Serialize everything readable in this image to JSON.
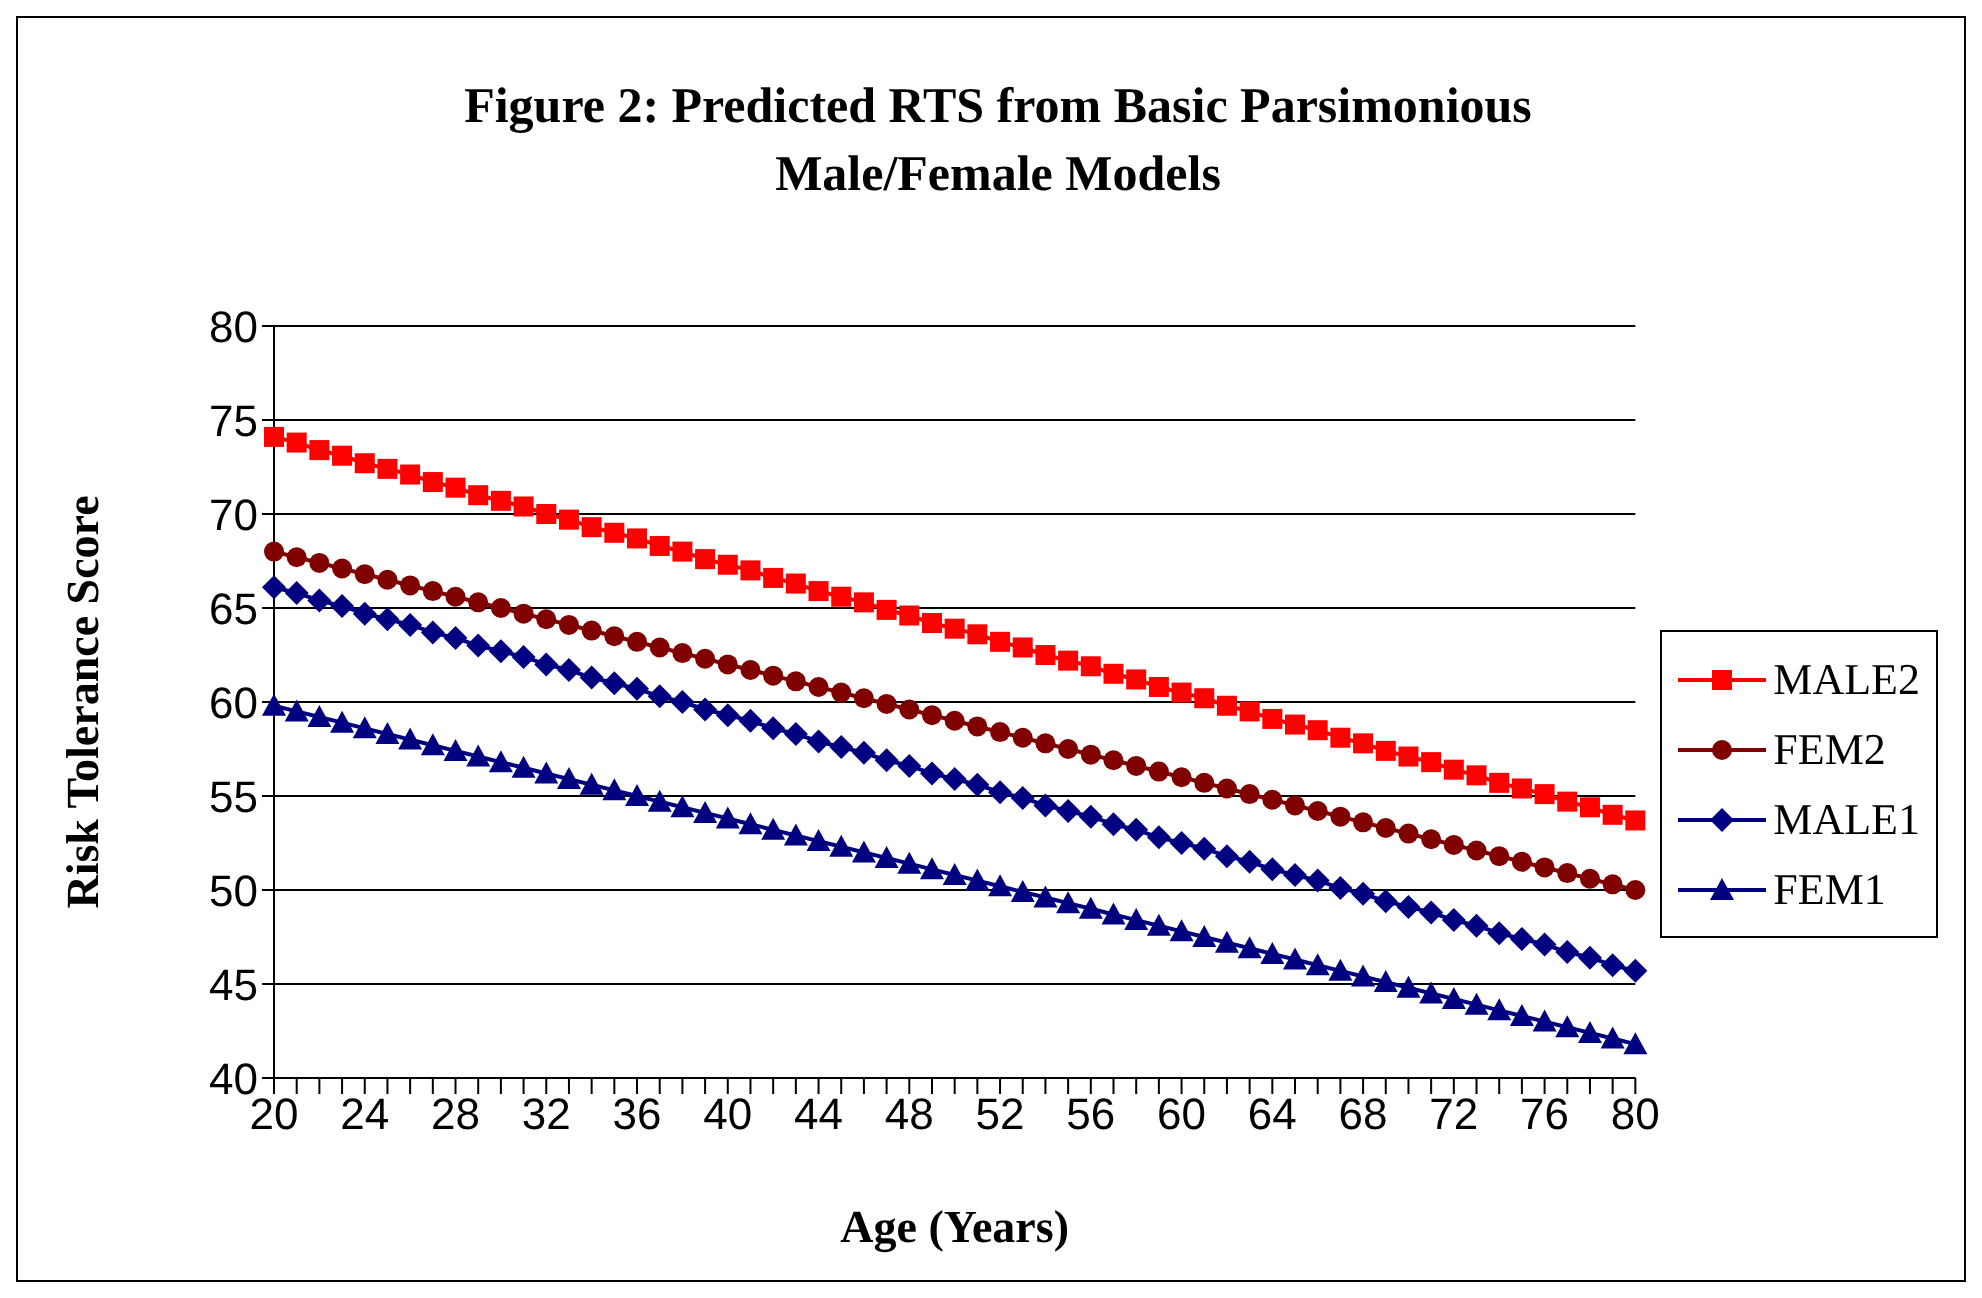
{
  "chart_data": {
    "type": "line",
    "title": "Figure 2: Predicted RTS from Basic Parsimonious Male/Female Models",
    "xlabel": "Age (Years)",
    "ylabel": "Risk Tolerance Score",
    "categories": [
      "20",
      null,
      null,
      null,
      "24",
      null,
      null,
      null,
      "28",
      null,
      null,
      null,
      "32",
      null,
      null,
      null,
      "36",
      null,
      null,
      null,
      "40",
      null,
      null,
      null,
      "44",
      null,
      null,
      null,
      "48",
      null,
      null,
      null,
      "52",
      null,
      null,
      null,
      "56",
      null,
      null,
      null,
      "60",
      null,
      null,
      null,
      "64",
      null,
      null,
      null,
      "68",
      null,
      null,
      null,
      "72",
      null,
      null,
      null,
      "76",
      null,
      null,
      null,
      "80"
    ],
    "ylim": [
      40,
      80
    ],
    "yticks": [
      40,
      45,
      50,
      55,
      60,
      65,
      70,
      75,
      80
    ],
    "grid": "y",
    "legend": "right",
    "series": [
      {
        "name": "MALE2",
        "color": "#ff0000",
        "marker": "square",
        "values": [
          74.1,
          73.8,
          73.4,
          73.1,
          72.7,
          72.4,
          72.1,
          71.7,
          71.4,
          71.0,
          70.7,
          70.4,
          70.0,
          69.7,
          69.3,
          69.0,
          68.7,
          68.3,
          68.0,
          67.6,
          67.3,
          67.0,
          66.6,
          66.3,
          65.9,
          65.6,
          65.3,
          64.9,
          64.6,
          64.2,
          63.9,
          63.6,
          63.2,
          62.9,
          62.5,
          62.2,
          61.9,
          61.5,
          61.2,
          60.8,
          60.5,
          60.2,
          59.8,
          59.5,
          59.1,
          58.8,
          58.5,
          58.1,
          57.8,
          57.4,
          57.1,
          56.8,
          56.4,
          56.1,
          55.7,
          55.4,
          55.1,
          54.7,
          54.4,
          54.0,
          53.7
        ]
      },
      {
        "name": "FEM2",
        "color": "#800000",
        "marker": "circle",
        "values": [
          68.0,
          67.7,
          67.4,
          67.1,
          66.8,
          66.5,
          66.2,
          65.9,
          65.6,
          65.3,
          65.0,
          64.7,
          64.4,
          64.1,
          63.8,
          63.5,
          63.2,
          62.9,
          62.6,
          62.3,
          62.0,
          61.7,
          61.4,
          61.1,
          60.8,
          60.5,
          60.2,
          59.9,
          59.6,
          59.3,
          59.0,
          58.7,
          58.4,
          58.1,
          57.8,
          57.5,
          57.2,
          56.9,
          56.6,
          56.3,
          56.0,
          55.7,
          55.4,
          55.1,
          54.8,
          54.5,
          54.2,
          53.9,
          53.6,
          53.3,
          53.0,
          52.7,
          52.4,
          52.1,
          51.8,
          51.5,
          51.2,
          50.9,
          50.6,
          50.3,
          50.0
        ]
      },
      {
        "name": "MALE1",
        "color": "#000080",
        "marker": "diamond",
        "values": [
          66.1,
          65.8,
          65.4,
          65.1,
          64.7,
          64.4,
          64.1,
          63.7,
          63.4,
          63.0,
          62.7,
          62.4,
          62.0,
          61.7,
          61.3,
          61.0,
          60.7,
          60.3,
          60.0,
          59.6,
          59.3,
          59.0,
          58.6,
          58.3,
          57.9,
          57.6,
          57.3,
          56.9,
          56.6,
          56.2,
          55.9,
          55.6,
          55.2,
          54.9,
          54.5,
          54.2,
          53.9,
          53.5,
          53.2,
          52.8,
          52.5,
          52.2,
          51.8,
          51.5,
          51.1,
          50.8,
          50.5,
          50.1,
          49.8,
          49.4,
          49.1,
          48.8,
          48.4,
          48.1,
          47.7,
          47.4,
          47.1,
          46.7,
          46.4,
          46.0,
          45.7
        ]
      },
      {
        "name": "FEM1",
        "color": "#000080",
        "marker": "triangle",
        "values": [
          59.8,
          59.5,
          59.2,
          58.9,
          58.6,
          58.3,
          58.0,
          57.7,
          57.4,
          57.1,
          56.8,
          56.5,
          56.2,
          55.9,
          55.6,
          55.3,
          55.0,
          54.7,
          54.4,
          54.1,
          53.8,
          53.5,
          53.2,
          52.9,
          52.6,
          52.3,
          52.0,
          51.7,
          51.4,
          51.1,
          50.8,
          50.5,
          50.2,
          49.9,
          49.6,
          49.3,
          49.0,
          48.7,
          48.4,
          48.1,
          47.8,
          47.5,
          47.2,
          46.9,
          46.6,
          46.3,
          46.0,
          45.7,
          45.4,
          45.1,
          44.8,
          44.5,
          44.2,
          43.9,
          43.6,
          43.3,
          43.0,
          42.7,
          42.4,
          42.1,
          41.8
        ]
      }
    ]
  }
}
